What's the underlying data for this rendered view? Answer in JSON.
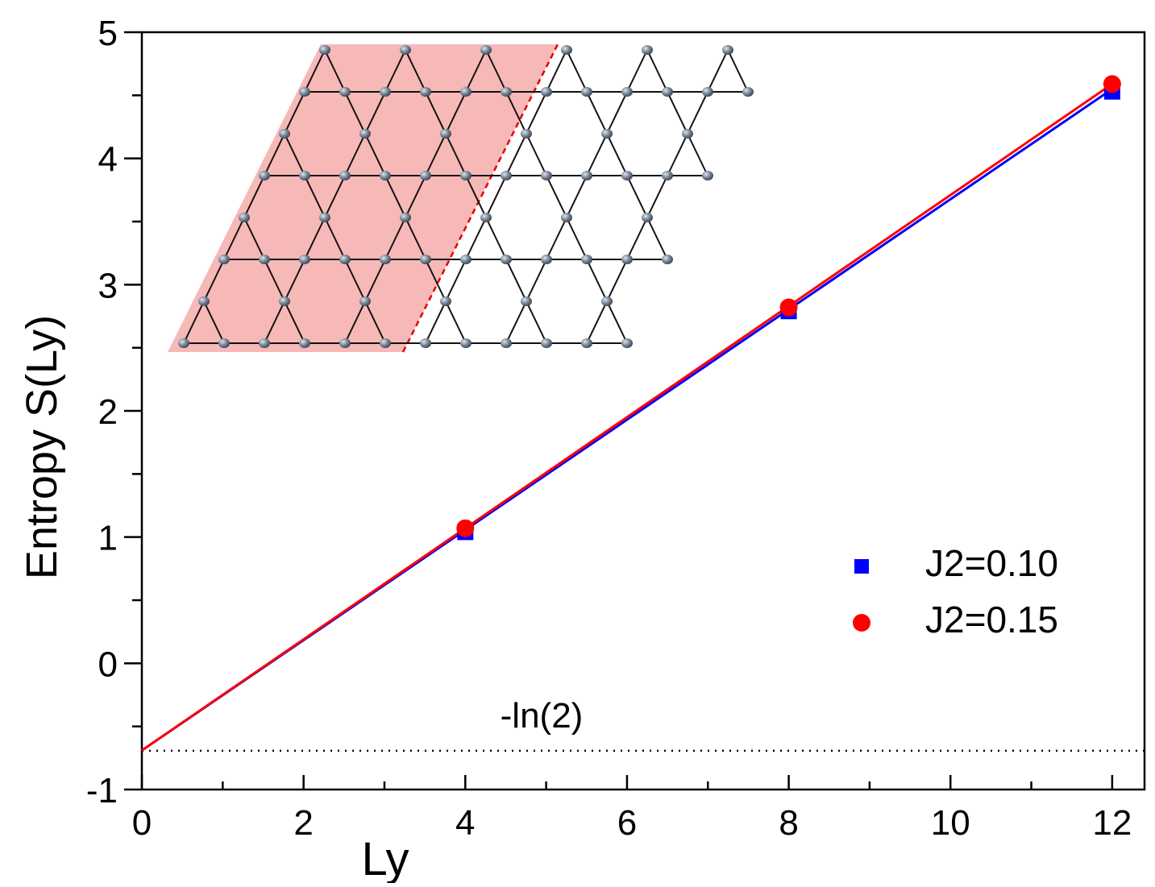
{
  "chart_data": {
    "type": "scatter",
    "xlabel": "Ly",
    "ylabel": "Entropy S(Ly)",
    "xlim": [
      0,
      12.4
    ],
    "ylim": [
      -1,
      5
    ],
    "xticks": [
      0,
      2,
      4,
      6,
      8,
      10,
      12
    ],
    "yticks": [
      -1,
      0,
      1,
      2,
      3,
      4,
      5
    ],
    "xminorticks": [
      1,
      3,
      5,
      7,
      9,
      11
    ],
    "yminorticks": [
      -0.5,
      0.5,
      1.5,
      2.5,
      3.5,
      4.5
    ],
    "series": [
      {
        "name": "J2=0.10",
        "color": "#0000ff",
        "marker": "square",
        "x": [
          4,
          8,
          12
        ],
        "values": [
          1.04,
          2.79,
          4.53
        ]
      },
      {
        "name": "J2=0.15",
        "color": "#ff0000",
        "marker": "circle",
        "x": [
          4,
          8,
          12
        ],
        "values": [
          1.07,
          2.82,
          4.59
        ]
      }
    ],
    "fits": [
      {
        "color": "#0000ff",
        "x": [
          0,
          12
        ],
        "values": [
          -0.69,
          4.55
        ]
      },
      {
        "color": "#ff0000",
        "x": [
          0,
          12
        ],
        "values": [
          -0.69,
          4.59
        ]
      }
    ],
    "reference_line": -0.693,
    "annotation": "-ln(2)"
  }
}
